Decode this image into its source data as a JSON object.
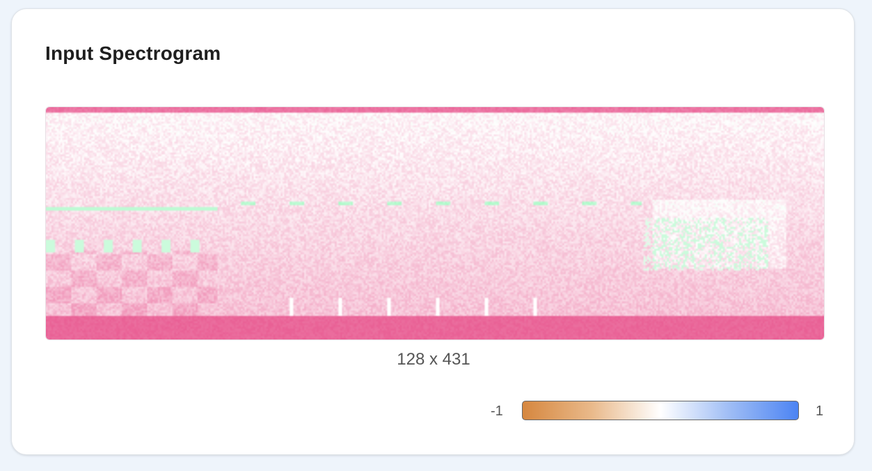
{
  "card": {
    "title": "Input Spectrogram"
  },
  "spectrogram": {
    "rows": 128,
    "cols": 431,
    "dims_label": "128 x 431",
    "colors": {
      "positive": "#e8578f",
      "negative": "#7cf5a8"
    }
  },
  "colorbar": {
    "min_label": "-1",
    "max_label": "1",
    "colors": [
      "#d6873f",
      "#ffffff",
      "#4c84f3"
    ]
  }
}
